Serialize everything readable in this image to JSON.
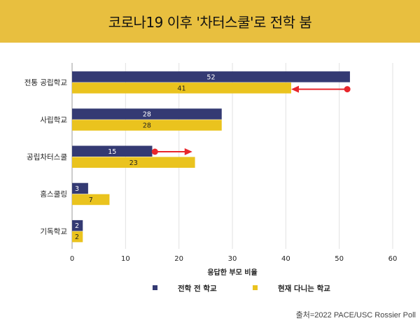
{
  "chart_data": {
    "type": "bar",
    "orientation": "horizontal",
    "title": "코로나19 이후 '차터스쿨'로 전학 붐",
    "categories": [
      "전통 공립학교",
      "사립학교",
      "공립차터스쿨",
      "홈스쿨링",
      "기독학교"
    ],
    "series": [
      {
        "name": "전학 전 학교",
        "values": [
          52,
          28,
          15,
          3,
          2
        ],
        "color": "#343a73"
      },
      {
        "name": "현재 다니는 학교",
        "values": [
          41,
          28,
          23,
          7,
          2
        ],
        "color": "#eac31e"
      }
    ],
    "xlabel": "응답한 부모 비율",
    "ylabel": "",
    "xlim": [
      0,
      60
    ],
    "xticks": [
      0,
      10,
      20,
      30,
      40,
      50,
      60
    ],
    "grid": true,
    "legend": "bottom",
    "annotations": [
      {
        "type": "arrow",
        "category": "전통 공립학교",
        "from": 51.5,
        "to": 41,
        "color": "#e8262b"
      },
      {
        "type": "arrow",
        "category": "공립차터스쿨",
        "from": 15.5,
        "to": 22.5,
        "color": "#e8262b"
      }
    ],
    "source": "출처=2022 PACE/USC Rossier Poll"
  },
  "colors": {
    "banner": "#e8bf3f"
  }
}
